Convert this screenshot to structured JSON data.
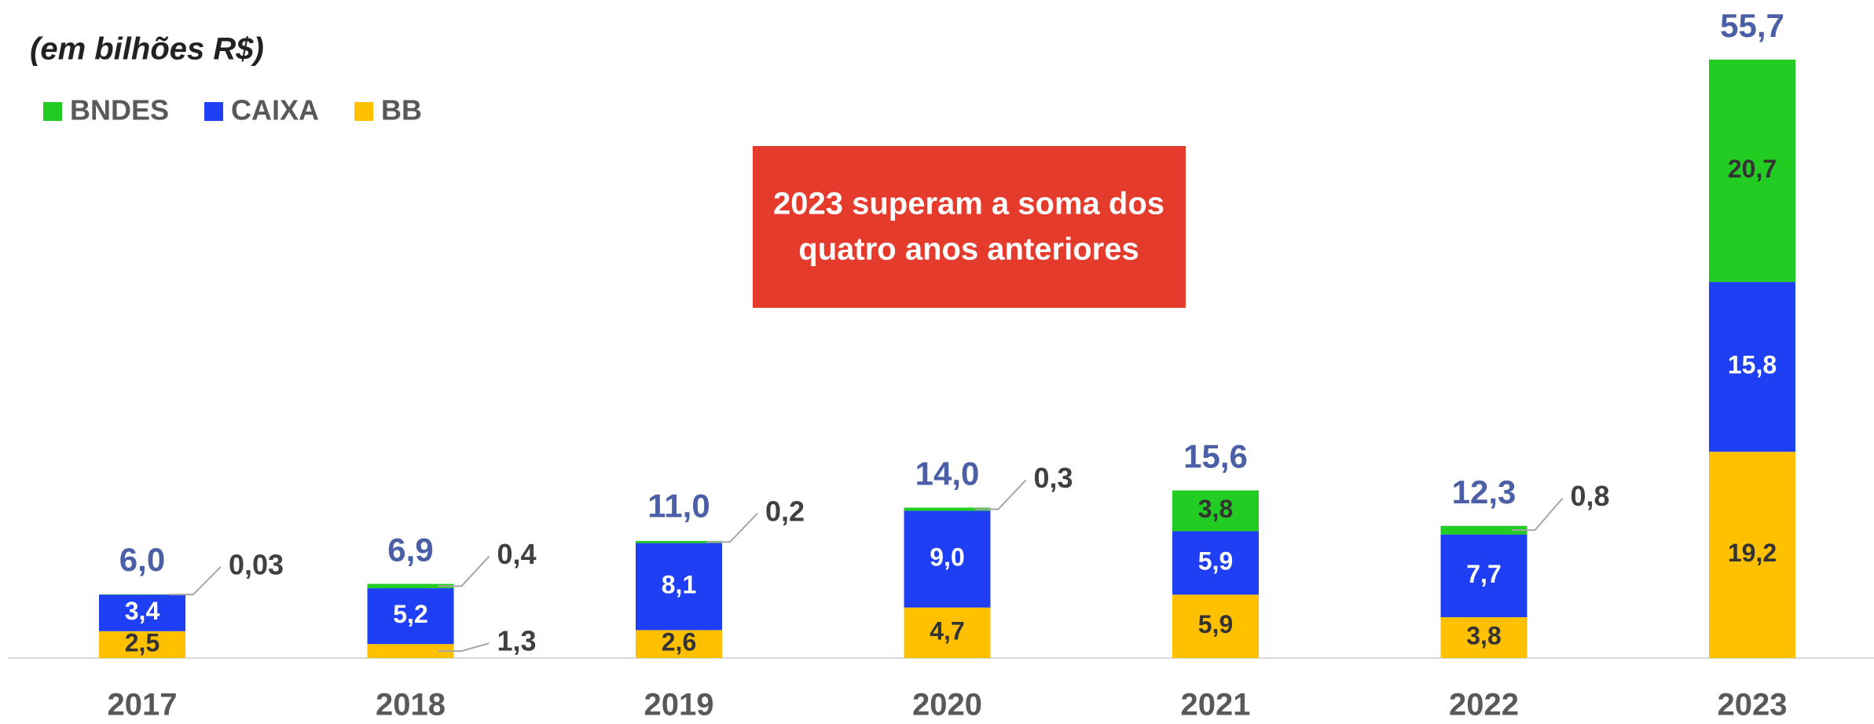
{
  "chart_data": {
    "type": "stacked_bar",
    "subtitle": "(em bilhões R$)",
    "annotation": [
      "2023 superam a soma dos",
      "quatro anos anteriores"
    ],
    "categories": [
      "2017",
      "2018",
      "2019",
      "2020",
      "2021",
      "2022",
      "2023"
    ],
    "series": [
      {
        "name": "BB",
        "color": "#ffc000",
        "values": [
          2.5,
          1.3,
          2.6,
          4.7,
          5.9,
          3.8,
          19.2
        ],
        "value_labels": [
          "2,5",
          "1,3",
          "2,6",
          "4,7",
          "5,9",
          "3,8",
          "19,2"
        ]
      },
      {
        "name": "CAIXA",
        "color": "#1f3ff5",
        "values": [
          3.4,
          5.2,
          8.1,
          9.0,
          5.9,
          7.7,
          15.8
        ],
        "value_labels": [
          "3,4",
          "5,2",
          "8,1",
          "9,0",
          "5,9",
          "7,7",
          "15,8"
        ]
      },
      {
        "name": "BNDES",
        "color": "#22cc22",
        "values": [
          0.03,
          0.4,
          0.2,
          0.3,
          3.8,
          0.8,
          20.7
        ],
        "value_labels": [
          "0,03",
          "0,4",
          "0,2",
          "0,3",
          "3,8",
          "0,8",
          "20,7"
        ]
      }
    ],
    "totals": [
      6.0,
      6.9,
      11.0,
      14.0,
      15.6,
      12.3,
      55.7
    ],
    "total_labels": [
      "6,0",
      "6,9",
      "11,0",
      "14,0",
      "15,6",
      "12,3",
      "55,7"
    ],
    "ylim": [
      0,
      60
    ]
  }
}
